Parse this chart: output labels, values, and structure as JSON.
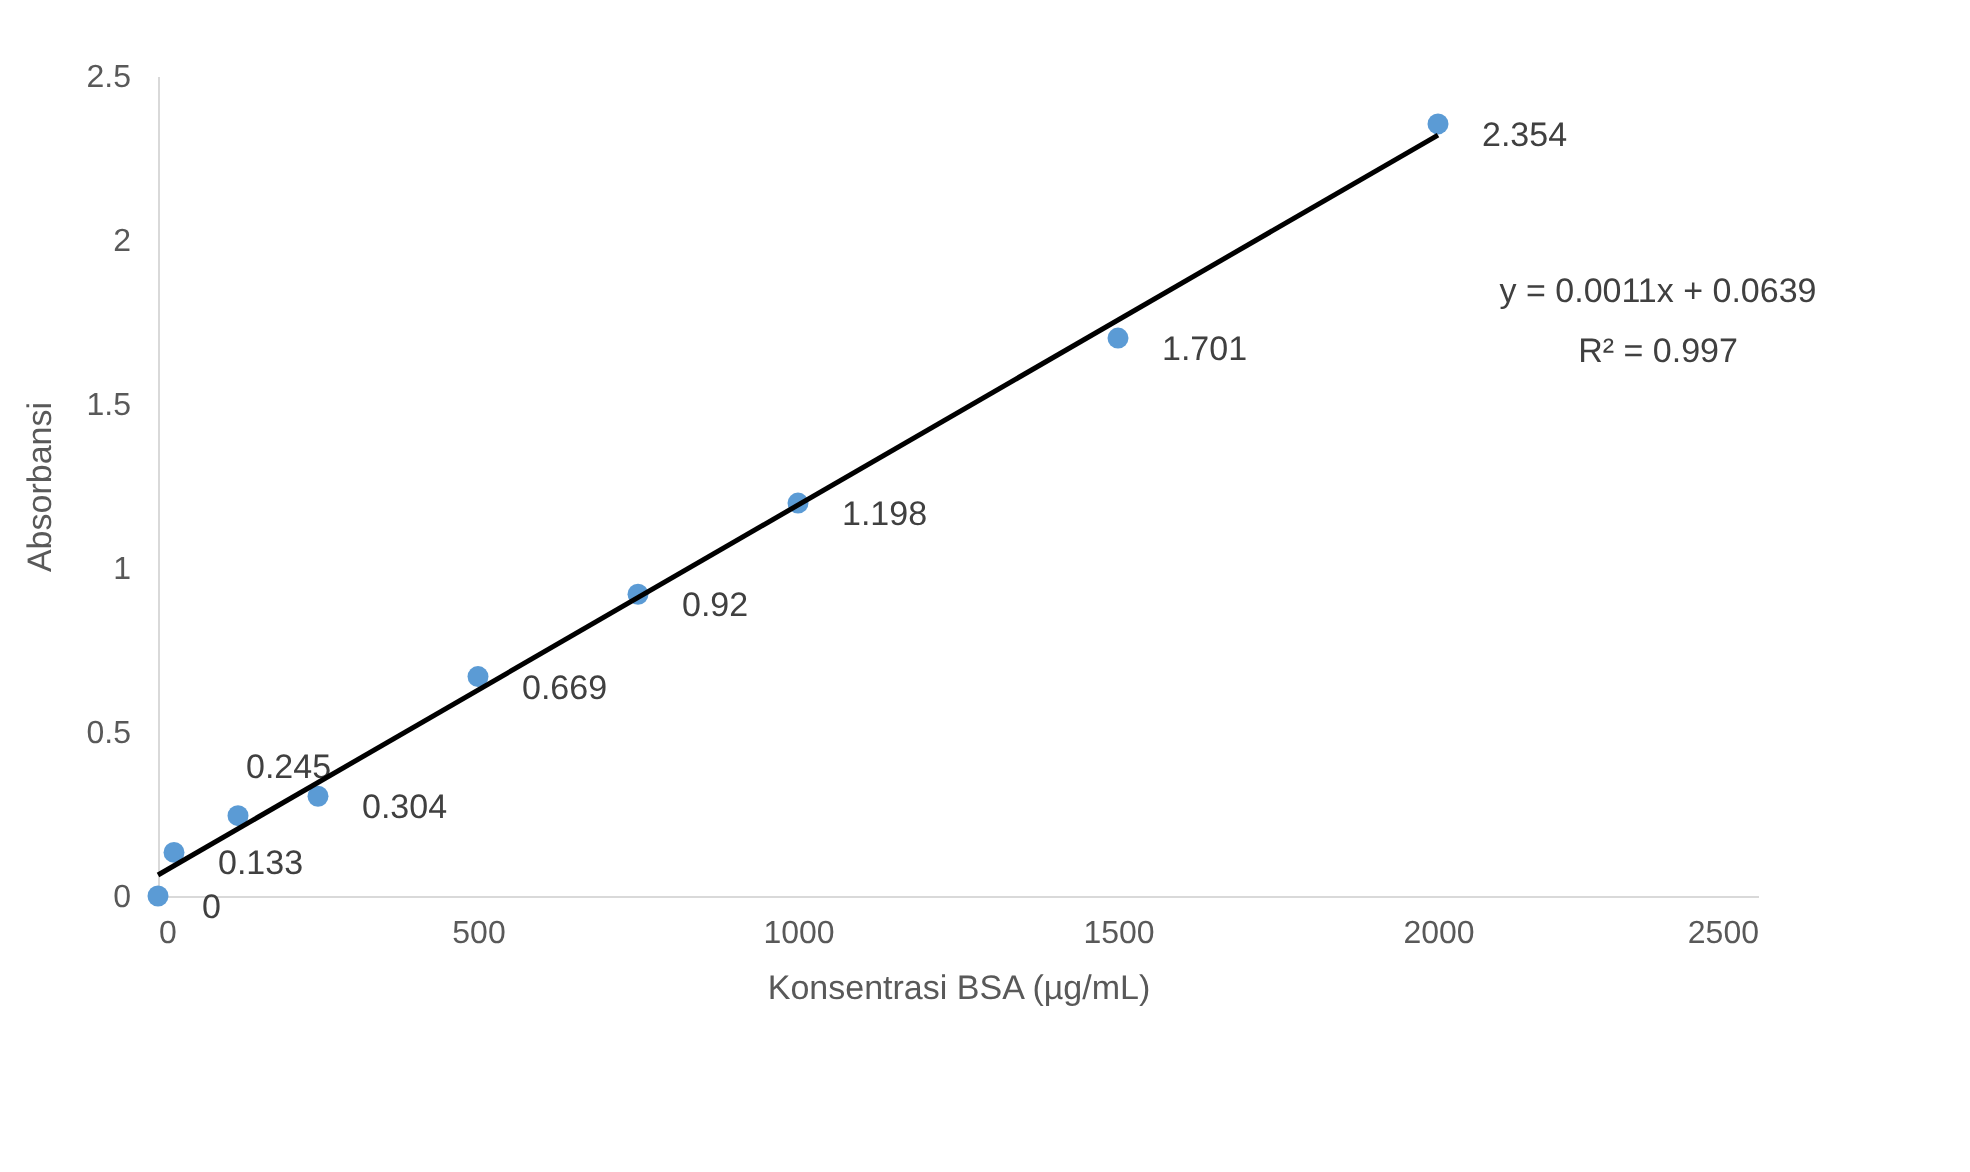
{
  "chart_data": {
    "type": "scatter",
    "xlabel": "Konsentrasi BSA (µg/mL)",
    "ylabel": "Absorbansi",
    "xlim": [
      0,
      2500
    ],
    "xticks": [
      0,
      500,
      1000,
      1500,
      2000,
      2500
    ],
    "ylim": [
      0,
      2.5
    ],
    "yticks": [
      0,
      0.5,
      1,
      1.5,
      2,
      2.5
    ],
    "grid": false,
    "marker": "circle",
    "series": [
      {
        "type": "scatter",
        "color": "#5b9bd5",
        "x": [
          0,
          25,
          125,
          250,
          500,
          750,
          1000,
          1500,
          2000
        ],
        "values": [
          0,
          0.133,
          0.245,
          0.304,
          0.669,
          0.92,
          1.198,
          1.701,
          2.354
        ],
        "value_labels": [
          "0",
          "0.133",
          "0.245",
          "0.304",
          "0.669",
          "0.92",
          "1.198",
          "1.701",
          "2.354"
        ]
      },
      {
        "type": "line",
        "color": "#000000",
        "line_style": "solid",
        "marker": "none",
        "x": [
          0,
          2000
        ],
        "values": [
          0.064,
          2.32
        ]
      }
    ],
    "annotations": [
      "y = 0.0011x + 0.0639",
      "R² = 0.997"
    ]
  }
}
